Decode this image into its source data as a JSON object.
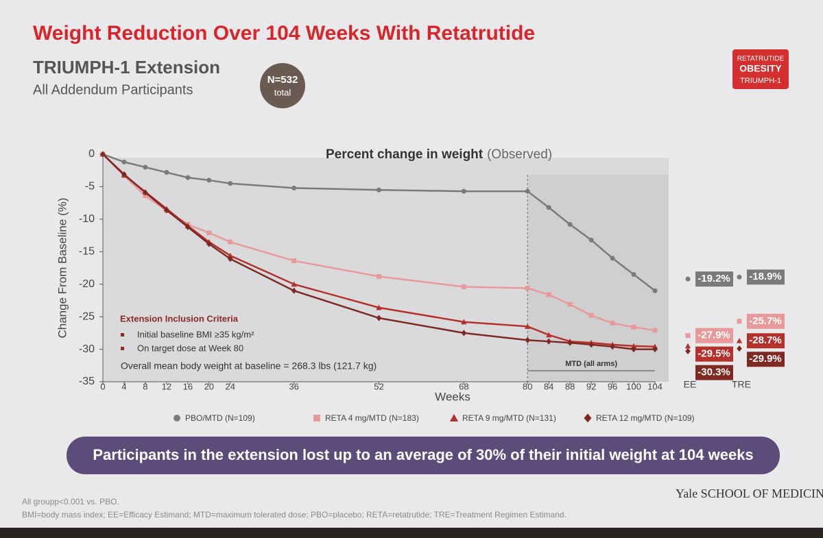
{
  "header": {
    "title": "Weight Reduction Over 104 Weeks With Retatrutide",
    "subtitle": "TRIUMPH-1 Extension",
    "population": "All Addendum Participants",
    "n_badge": {
      "value": "N=532",
      "label": "total"
    },
    "tag": [
      "RETATRUTIDE",
      "OBESITY",
      "TRIUMPH-1"
    ]
  },
  "chart_data": {
    "type": "line",
    "title": "Percent change in weight",
    "title_note": "(Observed)",
    "y_label": "Change From Baseline (%)",
    "x_label": "Weeks",
    "x": [
      0,
      4,
      8,
      12,
      16,
      20,
      24,
      36,
      52,
      68,
      80,
      84,
      88,
      92,
      96,
      100,
      104
    ],
    "xlim": [
      0,
      104
    ],
    "xticks": [
      0,
      4,
      8,
      12,
      16,
      20,
      24,
      36,
      52,
      68,
      80,
      84,
      88,
      92,
      96,
      100,
      104
    ],
    "ylim": [
      -35,
      0
    ],
    "yticks": [
      -35,
      -30,
      -25,
      -20,
      -15,
      -10,
      -5,
      0
    ],
    "divider_x": 80,
    "region_label": "MTD (all arms)",
    "series": [
      {
        "name": "PBO/MTD (N=109)",
        "color": "#7a7a7a",
        "marker": "circle",
        "values": [
          0,
          -1.2,
          -2.0,
          -2.8,
          -3.6,
          -4.0,
          -4.5,
          -5.2,
          -5.5,
          -5.7,
          -5.7,
          -8.2,
          -10.8,
          -13.2,
          -16.0,
          -18.5,
          -21.0
        ]
      },
      {
        "name": "RETA 4 mg/MTD (N=183)",
        "color": "#e89a9a",
        "marker": "square",
        "values": [
          0,
          -3.3,
          -6.4,
          -8.7,
          -10.8,
          -12.1,
          -13.5,
          -16.4,
          -18.8,
          -20.4,
          -20.6,
          -21.6,
          -23.1,
          -24.8,
          -26.0,
          -26.6,
          -27.1
        ]
      },
      {
        "name": "RETA 9 mg/MTD (N=131)",
        "color": "#b5322c",
        "marker": "triangle",
        "values": [
          0,
          -3.2,
          -5.8,
          -8.4,
          -11.0,
          -13.5,
          -15.6,
          -20.0,
          -23.6,
          -25.8,
          -26.5,
          -27.8,
          -28.8,
          -29.0,
          -29.3,
          -29.5,
          -29.6
        ]
      },
      {
        "name": "RETA 12 mg/MTD (N=109)",
        "color": "#7e2a22",
        "marker": "diamond",
        "values": [
          0,
          -3.1,
          -5.9,
          -8.6,
          -11.2,
          -13.8,
          -16.1,
          -21.0,
          -25.2,
          -27.5,
          -28.6,
          -28.8,
          -29.0,
          -29.3,
          -29.6,
          -30.0,
          -30.0
        ]
      }
    ],
    "estimands": [
      {
        "name": "EE",
        "values": [
          -19.2,
          -27.9,
          -29.5,
          -30.3
        ],
        "value_labels": [
          "-19.2%",
          "-27.9%",
          "-29.5%",
          "-30.3%"
        ]
      },
      {
        "name": "TRE",
        "values": [
          -18.9,
          -25.7,
          -28.7,
          -29.9
        ],
        "value_labels": [
          "-18.9%",
          "-25.7%",
          "-28.7%",
          "-29.9%"
        ]
      }
    ],
    "criteria": {
      "title": "Extension Inclusion Criteria",
      "items": [
        "Initial baseline BMI ≥35 kg/m²",
        "On target dose at Week 80"
      ],
      "baseline": "Overall mean body weight at baseline = 268.3 lbs (121.7 kg)"
    },
    "legend": "bottom"
  },
  "banner": "Participants in the extension lost up to an average of 30% of their initial weight at 104 weeks",
  "footnotes": [
    "All groupp<0.001 vs. PBO.",
    "BMI=body mass index; EE=Efficacy Estimand; MTD=maximum tolerated dose; PBO=placebo; RETA=retatrutide; TRE=Treatment Regimen Estimand."
  ],
  "logo": "Yale SCHOOL OF MEDICINE"
}
